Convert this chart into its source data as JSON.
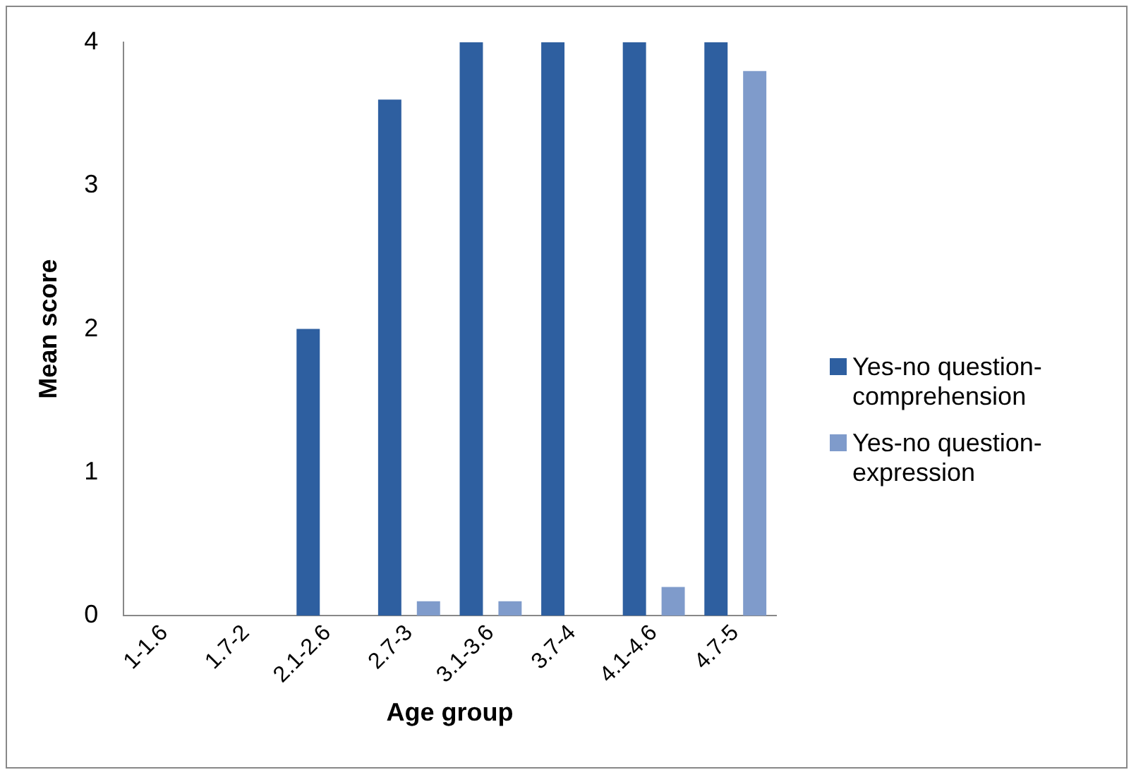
{
  "chart_data": {
    "type": "bar",
    "xlabel": "Age group",
    "ylabel": "Mean score",
    "categories": [
      "1-1.6",
      "1.7-2",
      "2.1-2.6",
      "2.7-3",
      "3.1-3.6",
      "3.7-4",
      "4.1-4.6",
      "4.7-5"
    ],
    "series": [
      {
        "name": "Yes-no question-comprehension",
        "color": "#2e5fa0",
        "values": [
          0,
          0,
          2,
          3.6,
          4,
          4,
          4,
          4
        ]
      },
      {
        "name": "Yes-no question-expression",
        "color": "#7f9bcb",
        "values": [
          0,
          0,
          0,
          0.1,
          0.1,
          0,
          0.2,
          3.8
        ]
      }
    ],
    "ylim": [
      0,
      4
    ],
    "yticks": [
      0,
      1,
      2,
      3,
      4
    ],
    "grid": false,
    "legend": "right"
  }
}
